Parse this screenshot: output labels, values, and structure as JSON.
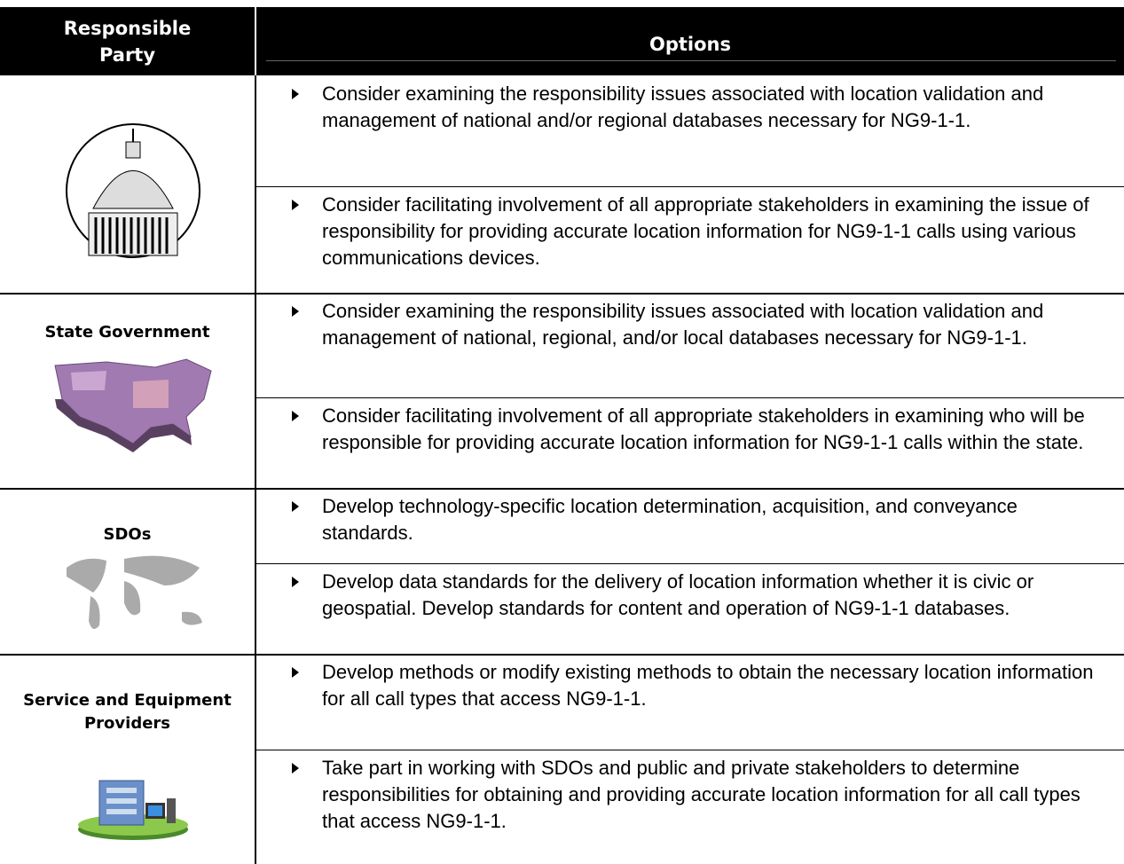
{
  "table": {
    "header": [
      "Responsible Party",
      "Options"
    ],
    "groups": [
      {
        "options": [
          "Consider examining the responsibility issues associated with location validation and management of national and/or regional databases necessary for NG9-1-1.",
          "Consider facilitating involvement of all appropriate stakeholders in examining the issue of responsibility for providing accurate location information for NG9-1-1 calls using various communications devices."
        ]
      },
      {
        "party": "State Government",
        "options": [
          "Consider examining the responsibility issues associated with location validation and management of national, regional, and/or local databases necessary for NG9-1-1.",
          "Consider facilitating involvement of all appropriate stakeholders in examining who will be responsible for providing accurate location information for NG9-1-1 calls within the state."
        ]
      },
      {
        "party": "SDOs",
        "options": [
          "Develop technology-specific location determination, acquisition, and conveyance standards.",
          "Develop data standards for the delivery of location information whether it is civic or geospatial.  Develop standards for content and operation of NG9-1-1 databases."
        ]
      },
      {
        "party": "Service and Equipment Providers",
        "options": [
          "Develop methods or modify existing methods to obtain the necessary location information for all call types that access NG9-1-1.",
          "Take part in working with SDOs and public and private stakeholders to determine responsibilities for obtaining and providing accurate location information for all call types that access NG9-1-1."
        ]
      }
    ]
  }
}
